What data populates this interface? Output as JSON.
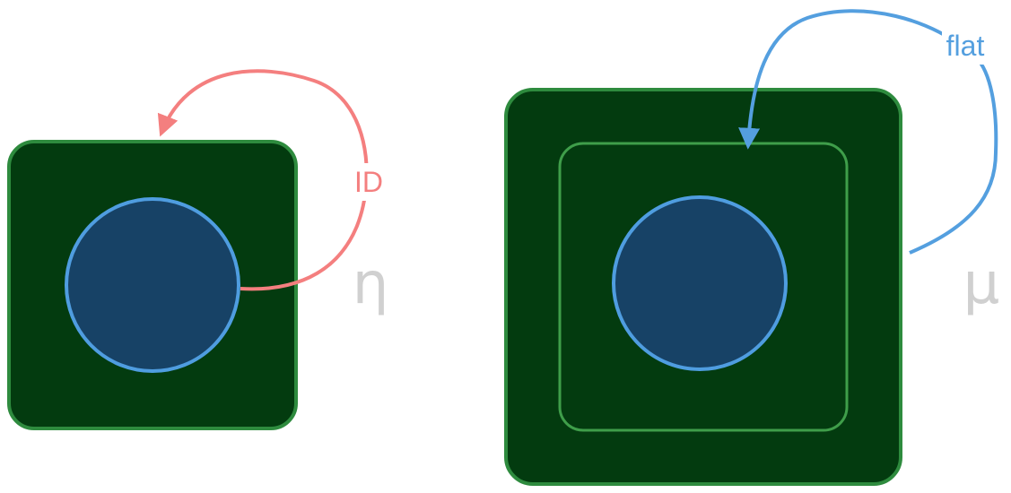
{
  "labels": {
    "eta": "η",
    "mu": "μ",
    "id_arrow": "ID",
    "flat_arrow": "flat"
  },
  "colors": {
    "box_fill": "#033b0f",
    "box_stroke": "#2e8b3e",
    "inner_box_stroke": "#3f9e4a",
    "circle_fill": "#174266",
    "circle_stroke": "#4f9de0",
    "id_arrow": "#f47f7f",
    "flat_arrow": "#549fdf",
    "greek_text": "#d0d0d0"
  }
}
